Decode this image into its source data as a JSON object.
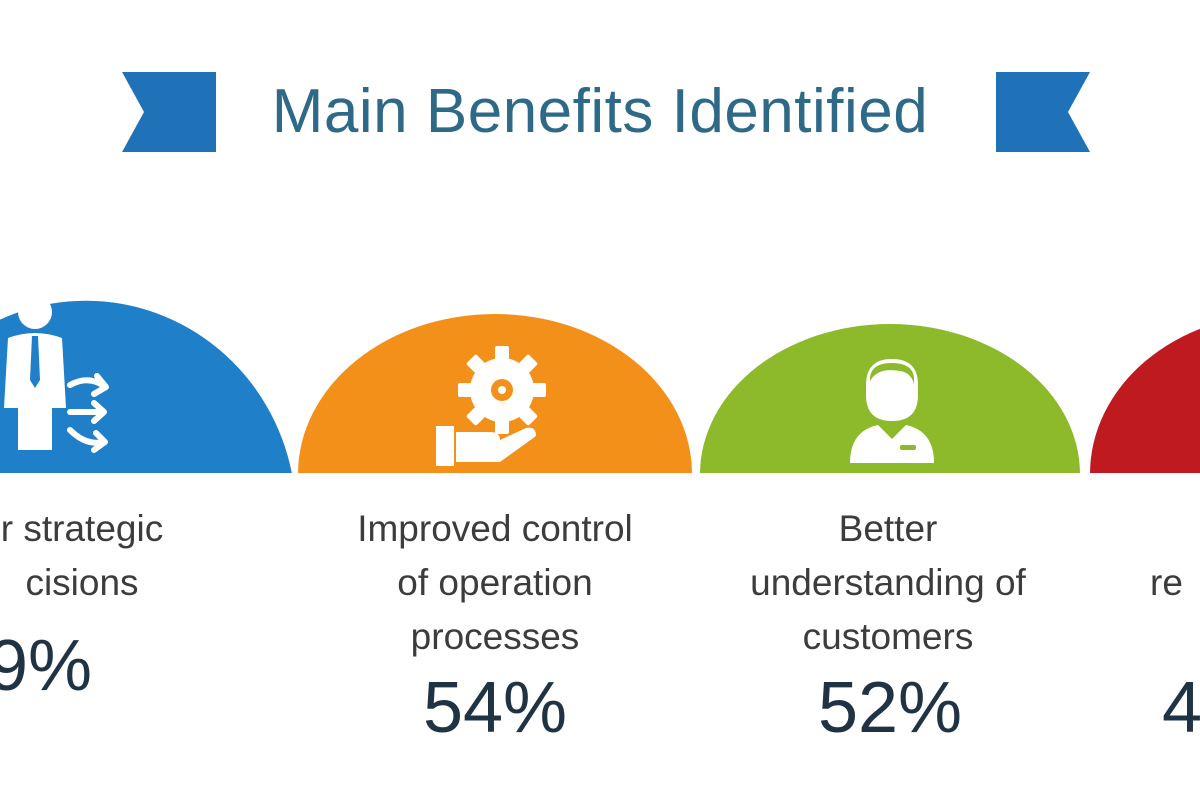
{
  "title": "Main Benefits Identified",
  "colors": {
    "title": "#2e6a87",
    "ribbon": "#1f72b8",
    "blue": "#1f7fc8",
    "orange": "#f39019",
    "green": "#8dba2a",
    "red": "#c01a21"
  },
  "benefits": [
    {
      "icon": "businessman-arrows-icon",
      "label_lines": [
        "r strategic",
        "cisions"
      ],
      "percent": "9%"
    },
    {
      "icon": "gear-hand-icon",
      "label_lines": [
        "Improved control",
        "of operation",
        "processes"
      ],
      "percent": "54%"
    },
    {
      "icon": "customer-service-icon",
      "label_lines": [
        "Better",
        "understanding of",
        "customers"
      ],
      "percent": "52%"
    },
    {
      "icon": "",
      "label_lines": [
        "re"
      ],
      "percent": "4"
    }
  ]
}
